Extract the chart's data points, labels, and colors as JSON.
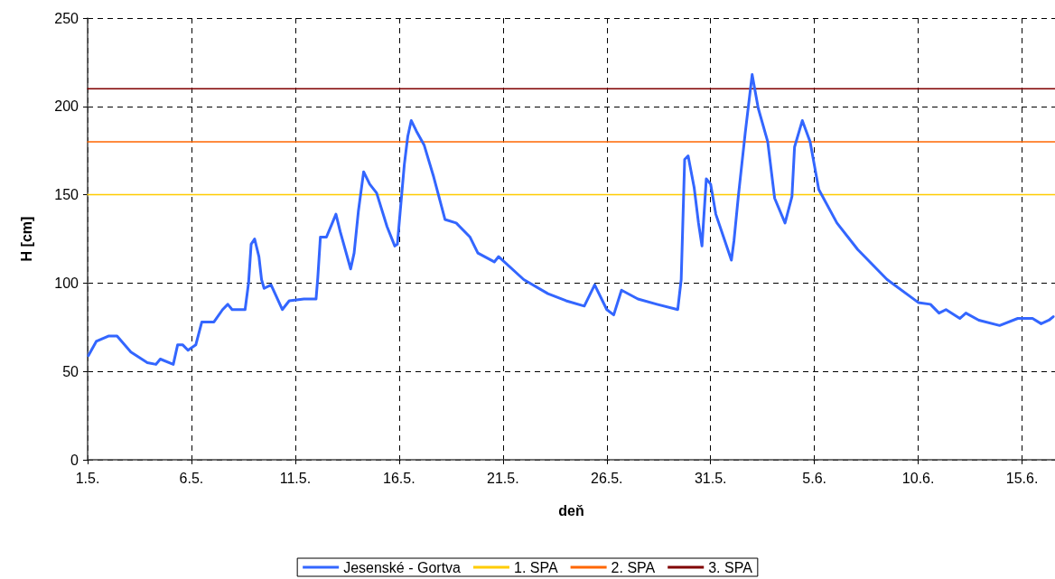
{
  "chart_data": {
    "type": "line",
    "xlabel": "deň",
    "ylabel": "H [cm]",
    "xlim": [
      "--05-01",
      "--06-16T14:00"
    ],
    "xticks": [
      {
        "value": "--05-01",
        "label": "1.5."
      },
      {
        "value": "--05-06",
        "label": "6.5."
      },
      {
        "value": "--05-11",
        "label": "11.5."
      },
      {
        "value": "--05-16",
        "label": "16.5."
      },
      {
        "value": "--05-21",
        "label": "21.5."
      },
      {
        "value": "--05-26",
        "label": "26.5."
      },
      {
        "value": "--05-31",
        "label": "31.5."
      },
      {
        "value": "--06-05",
        "label": "5.6."
      },
      {
        "value": "--06-10",
        "label": "10.6."
      },
      {
        "value": "--06-15",
        "label": "15.6."
      }
    ],
    "ylim": [
      0,
      250
    ],
    "yticks": [
      0,
      50,
      100,
      150,
      200,
      250
    ],
    "grid": true,
    "legend": "bottom",
    "marker": "none",
    "line_style": "solid",
    "series": [
      {
        "name": "Jesenské - Gortva",
        "color": "#3366ff",
        "x": [
          "--05-01T01:00",
          "--05-01T10:00",
          "--05-02T00:00",
          "--05-02T10:00",
          "--05-03T02:00",
          "--05-03T21:00",
          "--05-04T07:00",
          "--05-04T12:00",
          "--05-05T03:00",
          "--05-05T08:00",
          "--05-05T14:00",
          "--05-05T20:00",
          "--05-06T05:00",
          "--05-06T12:00",
          "--05-07T02:00",
          "--05-07T12:00",
          "--05-07T18:00",
          "--05-07T23:00",
          "--05-08T14:00",
          "--05-08T18:00",
          "--05-08T21:00",
          "--05-09T01:00",
          "--05-09T06:00",
          "--05-09T09:00",
          "--05-09T12:00",
          "--05-09T20:00",
          "--05-10T09:00",
          "--05-10T17:00",
          "--05-11T10:00",
          "--05-12T00:00",
          "--05-12T02:00",
          "--05-12T05:00",
          "--05-12T12:00",
          "--05-12T23:00",
          "--05-13T04:00",
          "--05-13T16:00",
          "--05-13T20:00",
          "--05-14T01:00",
          "--05-14T07:00",
          "--05-14T14:00",
          "--05-14T22:00",
          "--05-15T10:00",
          "--05-15T19:00",
          "--05-15T22:00",
          "--05-16T01:00",
          "--05-16T06:00",
          "--05-16T10:00",
          "--05-16T14:00",
          "--05-16T20:00",
          "--05-17T05:00",
          "--05-17T16:00",
          "--05-18T05:00",
          "--05-18T18:00",
          "--05-19T10:00",
          "--05-19T19:00",
          "--05-20T14:00",
          "--05-20T19:00",
          "--05-22T00:00",
          "--05-23T04:00",
          "--05-24T01:00",
          "--05-24T22:00",
          "--05-25T10:00",
          "--05-26T00:00",
          "--05-26T08:00",
          "--05-26T17:00",
          "--05-27T12:00",
          "--05-28T10:00",
          "--05-29T10:00",
          "--05-29T14:00",
          "--05-29T18:00",
          "--05-29T22:00",
          "--05-30T05:00",
          "--05-30T10:00",
          "--05-30T14:00",
          "--05-30T19:00",
          "--05-31T00:00",
          "--05-31T06:00",
          "--06-01T00:00",
          "--06-01T03:00",
          "--06-01T08:00",
          "--06-01T16:00",
          "--06-02T00:00",
          "--06-02T07:00",
          "--06-02T18:00",
          "--06-03T02:00",
          "--06-03T14:00",
          "--06-03T22:00",
          "--06-04T01:00",
          "--06-04T10:00",
          "--06-04T19:00",
          "--06-05T05:00",
          "--06-06T02:00",
          "--06-07T02:00",
          "--06-08T12:00",
          "--06-10T00:00",
          "--06-10T14:00",
          "--06-11T00:00",
          "--06-11T08:00",
          "--06-12T00:00",
          "--06-12T07:00",
          "--06-12T22:00",
          "--06-13T22:00",
          "--06-14T19:00",
          "--06-15T12:00",
          "--06-15T22:00",
          "--06-16T07:00",
          "--06-16T12:00"
        ],
        "values": [
          59,
          67,
          70,
          70,
          61,
          55,
          54,
          57,
          54,
          65,
          65,
          62,
          65,
          78,
          78,
          85,
          88,
          85,
          85,
          100,
          122,
          125,
          115,
          102,
          97,
          99,
          85,
          90,
          91,
          91,
          103,
          126,
          126,
          139,
          129,
          108,
          117,
          141,
          163,
          156,
          151,
          132,
          121,
          122,
          139,
          167,
          183,
          192,
          186,
          178,
          160,
          136,
          134,
          126,
          117,
          112,
          115,
          102,
          94,
          90,
          87,
          99,
          85,
          82,
          96,
          91,
          88,
          85,
          102,
          170,
          172,
          154,
          134,
          121,
          159,
          156,
          139,
          113,
          124,
          149,
          185,
          218,
          199,
          180,
          148,
          134,
          149,
          177,
          192,
          180,
          153,
          134,
          119,
          102,
          89,
          88,
          83,
          85,
          80,
          83,
          79,
          76,
          80,
          80,
          77,
          79,
          81
        ]
      },
      {
        "name": "1. SPA",
        "color": "#ffcc00",
        "x": [
          "--05-01",
          "--06-16T14:00"
        ],
        "values": [
          150,
          150
        ]
      },
      {
        "name": "2. SPA",
        "color": "#ff6600",
        "x": [
          "--05-01",
          "--06-16T14:00"
        ],
        "values": [
          180,
          180
        ]
      },
      {
        "name": "3. SPA",
        "color": "#800000",
        "x": [
          "--05-01",
          "--06-16T14:00"
        ],
        "values": [
          210,
          210
        ]
      }
    ]
  }
}
